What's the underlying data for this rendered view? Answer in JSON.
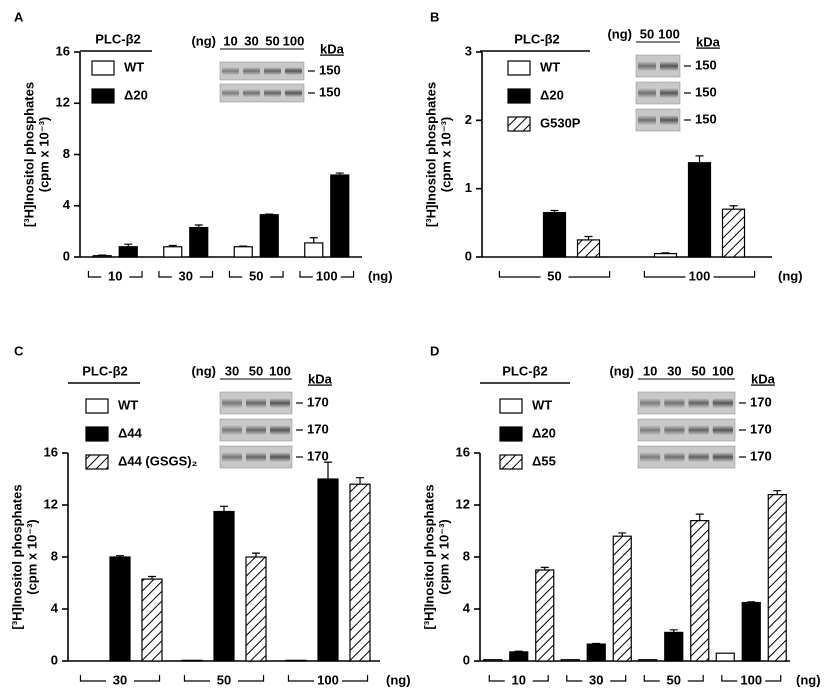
{
  "chart_data": [
    {
      "type": "bar",
      "panel": "A",
      "title": "PLC-β2",
      "ylabel": [
        "[³H]Inositol phosphates",
        "(cpm x 10⁻³)"
      ],
      "xlabel": "(ng)",
      "categories": [
        "10",
        "30",
        "50",
        "100"
      ],
      "series": [
        {
          "name": "WT",
          "style": "open",
          "values": [
            0.1,
            0.8,
            0.8,
            1.1
          ],
          "errors": [
            0.05,
            0.1,
            0.05,
            0.4
          ]
        },
        {
          "name": "Δ20",
          "style": "solid",
          "values": [
            0.8,
            2.3,
            3.3,
            6.4
          ],
          "errors": [
            0.2,
            0.2,
            0.05,
            0.15
          ]
        }
      ],
      "ylim": [
        0,
        16
      ],
      "yticks": [
        0,
        4,
        8,
        12,
        16
      ],
      "blot": {
        "unit": "(ng)",
        "lanes": [
          "10",
          "30",
          "50",
          "100"
        ],
        "kda_label": "kDa",
        "bands": [
          150,
          150
        ]
      }
    },
    {
      "type": "bar",
      "panel": "B",
      "title": "PLC-β2",
      "ylabel": [
        "[³H]Inositol phosphates",
        "(cpm x 10⁻³)"
      ],
      "xlabel": "(ng)",
      "categories": [
        "50",
        "100"
      ],
      "series": [
        {
          "name": "WT",
          "style": "open",
          "values": [
            0,
            0.05
          ],
          "errors": [
            0,
            0.01
          ]
        },
        {
          "name": "Δ20",
          "style": "solid",
          "values": [
            0.65,
            1.38
          ],
          "errors": [
            0.03,
            0.1
          ]
        },
        {
          "name": "G530P",
          "style": "hatched",
          "values": [
            0.25,
            0.7
          ],
          "errors": [
            0.05,
            0.05
          ]
        }
      ],
      "ylim": [
        0,
        3
      ],
      "yticks": [
        0,
        1,
        2,
        3
      ],
      "blot": {
        "unit": "(ng)",
        "lanes": [
          "50",
          "100"
        ],
        "kda_label": "kDa",
        "bands": [
          150,
          150,
          150
        ]
      }
    },
    {
      "type": "bar",
      "panel": "C",
      "title": "PLC-β2",
      "ylabel": [
        "[³H]Inositol phosphates",
        "(cpm x 10⁻³)"
      ],
      "xlabel": "(ng)",
      "categories": [
        "30",
        "50",
        "100"
      ],
      "series": [
        {
          "name": "WT",
          "style": "open",
          "values": [
            0,
            0.05,
            0.05
          ],
          "errors": [
            0,
            0,
            0
          ]
        },
        {
          "name": "Δ44",
          "style": "solid",
          "values": [
            8.0,
            11.5,
            14.0
          ],
          "errors": [
            0.1,
            0.4,
            1.3
          ]
        },
        {
          "name": "Δ44 (GSGS)₂",
          "style": "hatched",
          "values": [
            6.3,
            8.0,
            13.6
          ],
          "errors": [
            0.2,
            0.3,
            0.5
          ]
        }
      ],
      "ylim": [
        0,
        16
      ],
      "yticks": [
        0,
        4,
        8,
        12,
        16
      ],
      "blot": {
        "unit": "(ng)",
        "lanes": [
          "30",
          "50",
          "100"
        ],
        "kda_label": "kDa",
        "bands": [
          170,
          170,
          170
        ]
      }
    },
    {
      "type": "bar",
      "panel": "D",
      "title": "PLC-β2",
      "ylabel": [
        "[³H]Inositol phosphates",
        "(cpm x 10⁻³)"
      ],
      "xlabel": "(ng)",
      "categories": [
        "10",
        "30",
        "50",
        "100"
      ],
      "series": [
        {
          "name": "WT",
          "style": "open",
          "values": [
            0.1,
            0.1,
            0.1,
            0.6
          ],
          "errors": [
            0,
            0,
            0,
            0
          ]
        },
        {
          "name": "Δ20",
          "style": "solid",
          "values": [
            0.7,
            1.3,
            2.2,
            4.5
          ],
          "errors": [
            0.05,
            0.05,
            0.2,
            0.05
          ]
        },
        {
          "name": "Δ55",
          "style": "hatched",
          "values": [
            7.0,
            9.6,
            10.8,
            12.8
          ],
          "errors": [
            0.2,
            0.25,
            0.5,
            0.3
          ]
        }
      ],
      "ylim": [
        0,
        16
      ],
      "yticks": [
        0,
        4,
        8,
        12,
        16
      ],
      "blot": {
        "unit": "(ng)",
        "lanes": [
          "10",
          "30",
          "50",
          "100"
        ],
        "kda_label": "kDa",
        "bands": [
          170,
          170,
          170
        ]
      }
    }
  ]
}
